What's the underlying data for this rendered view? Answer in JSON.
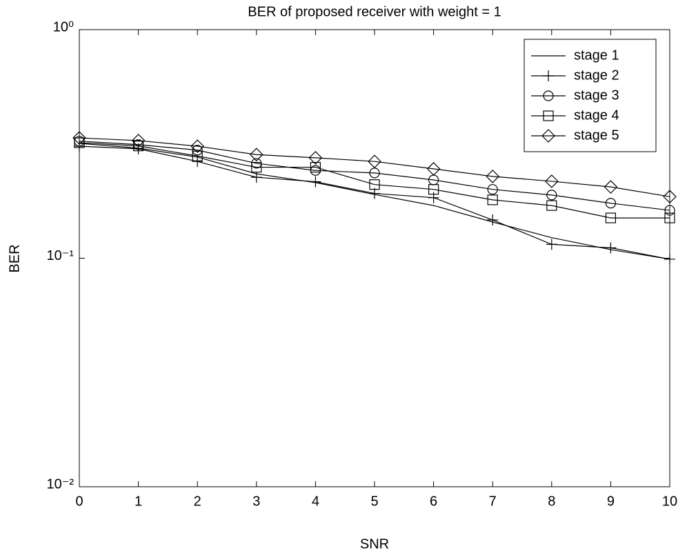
{
  "chart_data": {
    "type": "line",
    "title": "BER of proposed receiver with weight = 1",
    "x_label": "SNR",
    "y_label": "BER",
    "x": [
      0,
      1,
      2,
      3,
      4,
      5,
      6,
      7,
      8,
      9,
      10
    ],
    "xlim": [
      0,
      10
    ],
    "xticks": [
      0,
      1,
      2,
      3,
      4,
      5,
      6,
      7,
      8,
      9,
      10
    ],
    "ylim": [
      0.01,
      1
    ],
    "y_scale": "log",
    "yticks": [
      {
        "value": 0.01,
        "label": "10⁻²"
      },
      {
        "value": 0.1,
        "label": "10⁻¹"
      },
      {
        "value": 1,
        "label": "10⁰"
      }
    ],
    "legend": "upper right",
    "series": [
      {
        "name": "stage 1",
        "color": "#000000",
        "marker": "none",
        "values": [
          0.318,
          0.303,
          0.277,
          0.234,
          0.214,
          0.19,
          0.17,
          0.144,
          0.123,
          0.109,
          0.099
        ]
      },
      {
        "name": "stage 2",
        "color": "#000000",
        "marker": "plus",
        "values": [
          0.309,
          0.301,
          0.265,
          0.226,
          0.216,
          0.192,
          0.184,
          0.147,
          0.115,
          0.111,
          0.099
        ]
      },
      {
        "name": "stage 3",
        "color": "#000000",
        "marker": "circle",
        "values": [
          0.325,
          0.314,
          0.297,
          0.26,
          0.242,
          0.236,
          0.22,
          0.2,
          0.189,
          0.174,
          0.162
        ]
      },
      {
        "name": "stage 4",
        "color": "#000000",
        "marker": "square",
        "values": [
          0.32,
          0.31,
          0.28,
          0.25,
          0.25,
          0.21,
          0.2,
          0.18,
          0.17,
          0.15,
          0.15
        ]
      },
      {
        "name": "stage 5",
        "color": "#000000",
        "marker": "diamond",
        "values": [
          0.336,
          0.327,
          0.309,
          0.284,
          0.275,
          0.265,
          0.246,
          0.228,
          0.217,
          0.205,
          0.186
        ]
      }
    ]
  }
}
